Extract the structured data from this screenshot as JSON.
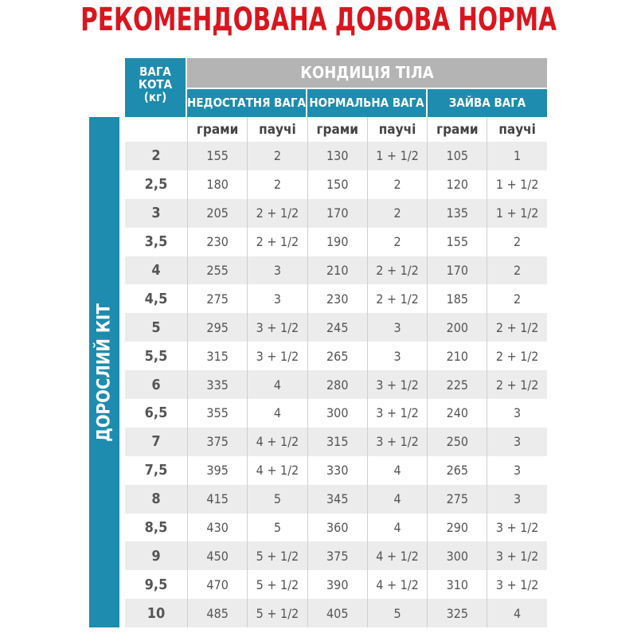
{
  "title": "РЕКОМЕНДОВАНА ДОБОВА НОРМА",
  "header": {
    "weight_label": [
      "ВАГА",
      "КОТА",
      "(кг)"
    ],
    "condition_label": "КОНДИЦІЯ ТІЛА",
    "groups": [
      "НЕДОСТАТНЯ ВАГА",
      "НОРМАЛЬНА ВАГА",
      "ЗАЙВА ВАГА"
    ],
    "subcolumns": [
      "грами",
      "паучі",
      "грами",
      "паучі",
      "грами",
      "паучі"
    ]
  },
  "side_label": "ДОРОСЛИЙ КІТ",
  "colors": {
    "title": "#d9161f",
    "accent": "#1d8cae",
    "gray_header": "#b4b4b4",
    "row_alt": "#ececec"
  },
  "rows": [
    [
      "2",
      "155",
      "2",
      "130",
      "1 + 1/2",
      "105",
      "1"
    ],
    [
      "2,5",
      "180",
      "2",
      "150",
      "2",
      "120",
      "1 + 1/2"
    ],
    [
      "3",
      "205",
      "2 + 1/2",
      "170",
      "2",
      "135",
      "1 + 1/2"
    ],
    [
      "3,5",
      "230",
      "2 + 1/2",
      "190",
      "2",
      "155",
      "2"
    ],
    [
      "4",
      "255",
      "3",
      "210",
      "2 + 1/2",
      "170",
      "2"
    ],
    [
      "4,5",
      "275",
      "3",
      "230",
      "2 + 1/2",
      "185",
      "2"
    ],
    [
      "5",
      "295",
      "3 + 1/2",
      "245",
      "3",
      "200",
      "2 + 1/2"
    ],
    [
      "5,5",
      "315",
      "3 + 1/2",
      "265",
      "3",
      "210",
      "2 + 1/2"
    ],
    [
      "6",
      "335",
      "4",
      "280",
      "3 + 1/2",
      "225",
      "2 + 1/2"
    ],
    [
      "6,5",
      "355",
      "4",
      "300",
      "3 + 1/2",
      "240",
      "3"
    ],
    [
      "7",
      "375",
      "4 + 1/2",
      "315",
      "3 + 1/2",
      "250",
      "3"
    ],
    [
      "7,5",
      "395",
      "4 + 1/2",
      "330",
      "4",
      "265",
      "3"
    ],
    [
      "8",
      "415",
      "5",
      "345",
      "4",
      "275",
      "3"
    ],
    [
      "8,5",
      "430",
      "5",
      "360",
      "4",
      "290",
      "3 + 1/2"
    ],
    [
      "9",
      "450",
      "5 + 1/2",
      "375",
      "4 + 1/2",
      "300",
      "3 + 1/2"
    ],
    [
      "9,5",
      "470",
      "5 + 1/2",
      "390",
      "4 + 1/2",
      "310",
      "3 + 1/2"
    ],
    [
      "10",
      "485",
      "5 + 1/2",
      "405",
      "5",
      "325",
      "4"
    ]
  ]
}
